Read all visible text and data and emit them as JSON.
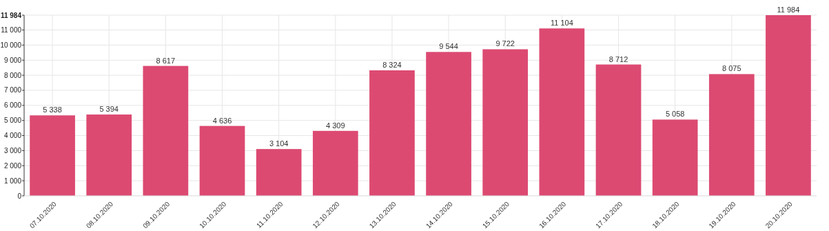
{
  "chart_data": {
    "type": "bar",
    "categories": [
      "07.10.2020",
      "08.10.2020",
      "09.10.2020",
      "10.10.2020",
      "11.10.2020",
      "12.10.2020",
      "13.10.2020",
      "14.10.2020",
      "15.10.2020",
      "16.10.2020",
      "17.10.2020",
      "18.10.2020",
      "19.10.2020",
      "20.10.2020"
    ],
    "values": [
      5338,
      5394,
      8617,
      4636,
      3104,
      4309,
      8324,
      9544,
      9722,
      11104,
      8712,
      5058,
      8075,
      11984
    ],
    "color": "#dc4a72",
    "value_labels": [
      "5 338",
      "5 394",
      "8 617",
      "4 636",
      "3 104",
      "4 309",
      "8 324",
      "9 544",
      "9 722",
      "11 104",
      "8 712",
      "5 058",
      "8 075",
      "11 984"
    ],
    "ylim": [
      0,
      11984
    ],
    "yticks": [
      {
        "value": 0,
        "label": "0"
      },
      {
        "value": 1000,
        "label": "1 000"
      },
      {
        "value": 2000,
        "label": "2 000"
      },
      {
        "value": 3000,
        "label": "3 000"
      },
      {
        "value": 4000,
        "label": "4 000"
      },
      {
        "value": 5000,
        "label": "5 000"
      },
      {
        "value": 6000,
        "label": "6 000"
      },
      {
        "value": 7000,
        "label": "7 000"
      },
      {
        "value": 8000,
        "label": "8 000"
      },
      {
        "value": 9000,
        "label": "9 000"
      },
      {
        "value": 10000,
        "label": "10 000"
      },
      {
        "value": 11000,
        "label": "11 000"
      },
      {
        "value": 11984,
        "label": "11 984"
      }
    ],
    "grid": true
  }
}
